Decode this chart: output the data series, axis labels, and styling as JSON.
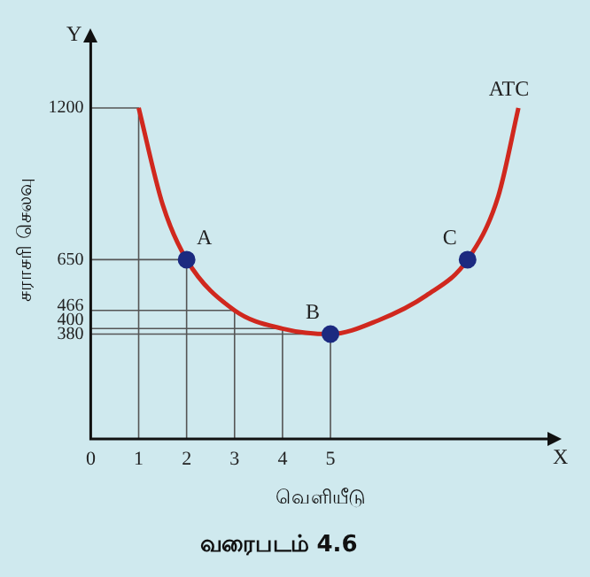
{
  "chart_data": {
    "type": "line",
    "title": "வரைபடம் 4.6",
    "xlabel": "வெளியீடு",
    "ylabel": "சராசரி செலவு",
    "xlim": [
      0,
      9.6
    ],
    "ylim": [
      0,
      1450
    ],
    "xticks": [
      0,
      1,
      2,
      3,
      4,
      5
    ],
    "yticks": [
      380,
      400,
      466,
      650,
      1200
    ],
    "grid": false,
    "legend": false,
    "series": [
      {
        "color": "#555555",
        "marker": "none",
        "x": [
          1,
          1,
          0
        ],
        "values": [
          0,
          1200,
          1200
        ]
      },
      {
        "color": "#555555",
        "marker": "none",
        "x": [
          2,
          2,
          0
        ],
        "values": [
          0,
          650,
          650
        ]
      },
      {
        "color": "#555555",
        "marker": "none",
        "x": [
          3,
          3,
          0
        ],
        "values": [
          0,
          466,
          466
        ]
      },
      {
        "color": "#555555",
        "marker": "none",
        "x": [
          4,
          4,
          0
        ],
        "values": [
          0,
          400,
          400
        ]
      },
      {
        "color": "#555555",
        "marker": "none",
        "x": [
          5,
          5,
          0
        ],
        "values": [
          0,
          380,
          380
        ]
      },
      {
        "name": "ATC",
        "color": "#d0281e",
        "marker": "none",
        "x": [
          1,
          1.5,
          2,
          3,
          4,
          5,
          6,
          7,
          7.86,
          8.5,
          8.92
        ],
        "values": [
          1200,
          850,
          650,
          466,
          400,
          380,
          430,
          520,
          650,
          880,
          1200
        ]
      },
      {
        "type": "scatter",
        "color": "#1c2a80",
        "marker": "circle",
        "x": [
          2,
          5,
          7.86
        ],
        "values": [
          650,
          380,
          650
        ]
      }
    ],
    "annotations": [
      {
        "text": "A",
        "x": 2,
        "y": 650
      },
      {
        "text": "B",
        "x": 5,
        "y": 380
      },
      {
        "text": "C",
        "x": 7.86,
        "y": 650
      },
      "X",
      "Y"
    ]
  }
}
